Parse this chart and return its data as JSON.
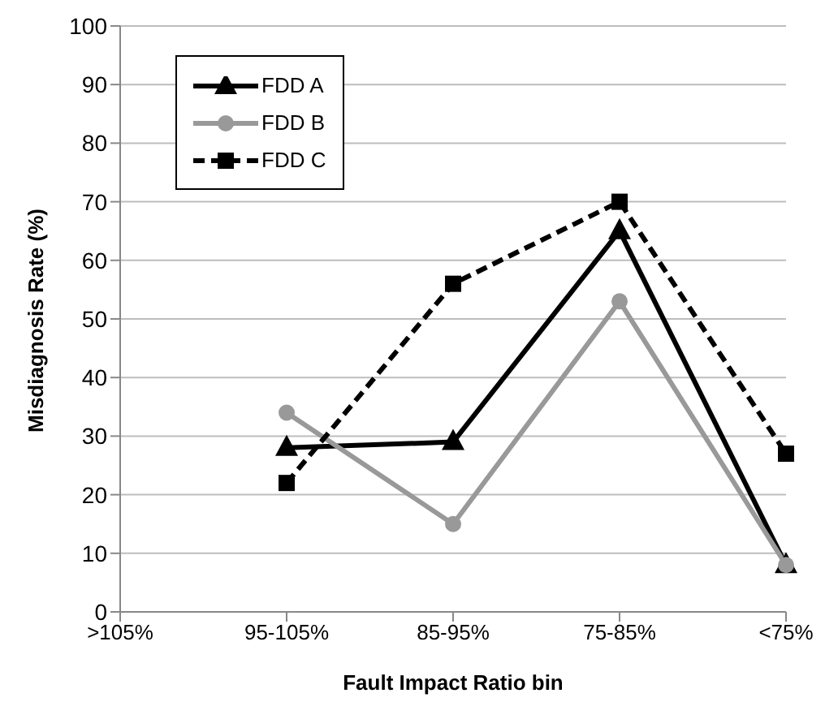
{
  "chart_data": {
    "type": "line",
    "xlabel": "Fault Impact Ratio bin",
    "ylabel": "Misdiagnosis Rate (%)",
    "categories": [
      ">105%",
      "95-105%",
      "85-95%",
      "75-85%",
      "<75%"
    ],
    "series": [
      {
        "name": "FDD A",
        "color": "#000000",
        "marker": "triangle",
        "line_style": "solid",
        "values": [
          null,
          28,
          29,
          65,
          8
        ]
      },
      {
        "name": "FDD B",
        "color": "#999999",
        "marker": "circle",
        "line_style": "solid",
        "values": [
          null,
          34,
          15,
          53,
          8
        ]
      },
      {
        "name": "FDD C",
        "color": "#000000",
        "marker": "square",
        "line_style": "dashed",
        "values": [
          null,
          22,
          56,
          70,
          27
        ]
      }
    ],
    "ylim": [
      0,
      100
    ],
    "yticks": [
      0,
      10,
      20,
      30,
      40,
      50,
      60,
      70,
      80,
      90,
      100
    ],
    "grid": "y",
    "legend": "top left"
  }
}
